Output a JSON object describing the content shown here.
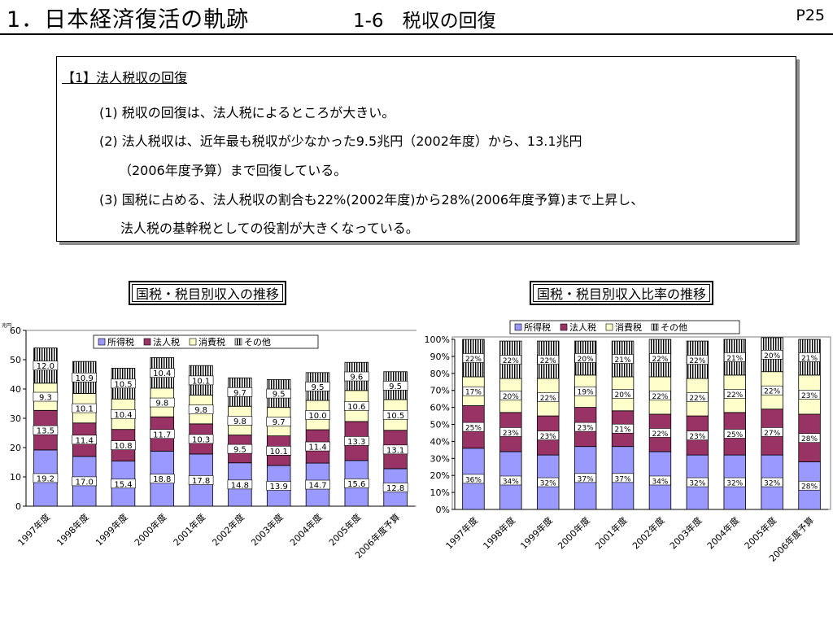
{
  "header": {
    "title": "1．日本経済復活の軌跡",
    "section": "1-6　税収の回復",
    "page": "P25"
  },
  "summary": {
    "heading": "【1】法人税収の回復",
    "lines": [
      "(1) 税収の回復は、法人税によるところが大きい。",
      "(2) 法人税収は、近年最も税収が少なかった9.5兆円（2002年度）から、13.1兆円",
      "（2006年度予算）まで回復している。",
      "(3) 国税に占める、法人税収の割合も22%(2002年度)から28%(2006年度予算)まで上昇し、",
      "法人税の基幹税としての役割が大きくなっている。"
    ]
  },
  "colors": {
    "所得税": "#9999ff",
    "法人税": "#993366",
    "消費税": "#ffffcc",
    "その他": "#ffffff"
  },
  "chart_data": [
    {
      "type": "bar",
      "stacked": true,
      "title": "国税・税目別収入の推移",
      "unit_label": "兆円",
      "categories": [
        "1997年度",
        "1998年度",
        "1999年度",
        "2000年度",
        "2001年度",
        "2002年度",
        "2003年度",
        "2004年度",
        "2005年度",
        "2006年度予算"
      ],
      "series": [
        {
          "name": "所得税",
          "values": [
            19.2,
            17.0,
            15.4,
            18.8,
            17.8,
            14.8,
            13.9,
            14.7,
            15.6,
            12.8
          ]
        },
        {
          "name": "法人税",
          "values": [
            13.5,
            11.4,
            10.8,
            11.7,
            10.3,
            9.5,
            10.1,
            11.4,
            13.3,
            13.1
          ]
        },
        {
          "name": "消費税",
          "values": [
            9.3,
            10.1,
            10.4,
            9.8,
            9.8,
            9.8,
            9.7,
            10.0,
            10.6,
            10.5
          ]
        },
        {
          "name": "その他",
          "values": [
            12.0,
            10.9,
            10.5,
            10.4,
            10.1,
            9.7,
            9.5,
            9.5,
            9.6,
            9.5
          ]
        }
      ],
      "value_labels": [
        [
          "19.2",
          "13.5",
          "9.3",
          "12.0"
        ],
        [
          "17.0",
          "11.4",
          "10.1",
          "10.9"
        ],
        [
          "15.4",
          "10.8",
          "10.4",
          "10.5"
        ],
        [
          "18.8",
          "11.7",
          "9.8",
          "10.4"
        ],
        [
          "17.8",
          "10.3",
          "9.8",
          "10.1"
        ],
        [
          "14.8",
          "9.5",
          "9.8",
          "9.7"
        ],
        [
          "13.9",
          "10.1",
          "9.7",
          "9.5"
        ],
        [
          "14.7",
          "11.4",
          "10.0",
          "9.5"
        ],
        [
          "15.6",
          "13.3",
          "10.6",
          "9.6"
        ],
        [
          "12.8",
          "13.1",
          "10.5",
          "9.5"
        ]
      ],
      "ylim": [
        0,
        60
      ],
      "yticks": [
        "0",
        "10",
        "20",
        "30",
        "40",
        "50",
        "60"
      ],
      "legend_position": "top",
      "grid": false
    },
    {
      "type": "bar",
      "stacked": true,
      "percent": true,
      "title": "国税・税目別収入比率の推移",
      "categories": [
        "1997年度",
        "1998年度",
        "1999年度",
        "2000年度",
        "2001年度",
        "2002年度",
        "2003年度",
        "2004年度",
        "2005年度",
        "2006年度予算"
      ],
      "series": [
        {
          "name": "所得税",
          "values": [
            36,
            34,
            32,
            37,
            37,
            34,
            32,
            32,
            32,
            28
          ]
        },
        {
          "name": "法人税",
          "values": [
            25,
            23,
            23,
            23,
            21,
            22,
            23,
            25,
            27,
            28
          ]
        },
        {
          "name": "消費税",
          "values": [
            17,
            20,
            22,
            19,
            20,
            22,
            22,
            22,
            22,
            23
          ]
        },
        {
          "name": "その他",
          "values": [
            22,
            22,
            22,
            20,
            21,
            22,
            22,
            21,
            20,
            21
          ]
        }
      ],
      "value_labels": [
        [
          "36%",
          "25%",
          "17%",
          "22%"
        ],
        [
          "34%",
          "23%",
          "20%",
          "22%"
        ],
        [
          "32%",
          "23%",
          "22%",
          "22%"
        ],
        [
          "37%",
          "23%",
          "19%",
          "20%"
        ],
        [
          "37%",
          "21%",
          "20%",
          "21%"
        ],
        [
          "34%",
          "22%",
          "22%",
          "22%"
        ],
        [
          "32%",
          "23%",
          "22%",
          "22%"
        ],
        [
          "32%",
          "25%",
          "22%",
          "21%"
        ],
        [
          "32%",
          "27%",
          "22%",
          "20%"
        ],
        [
          "28%",
          "28%",
          "23%",
          "21%"
        ]
      ],
      "ylim": [
        0,
        100
      ],
      "yticks": [
        "0%",
        "10%",
        "20%",
        "30%",
        "40%",
        "50%",
        "60%",
        "70%",
        "80%",
        "90%",
        "100%"
      ],
      "legend_position": "top",
      "grid": false
    }
  ]
}
